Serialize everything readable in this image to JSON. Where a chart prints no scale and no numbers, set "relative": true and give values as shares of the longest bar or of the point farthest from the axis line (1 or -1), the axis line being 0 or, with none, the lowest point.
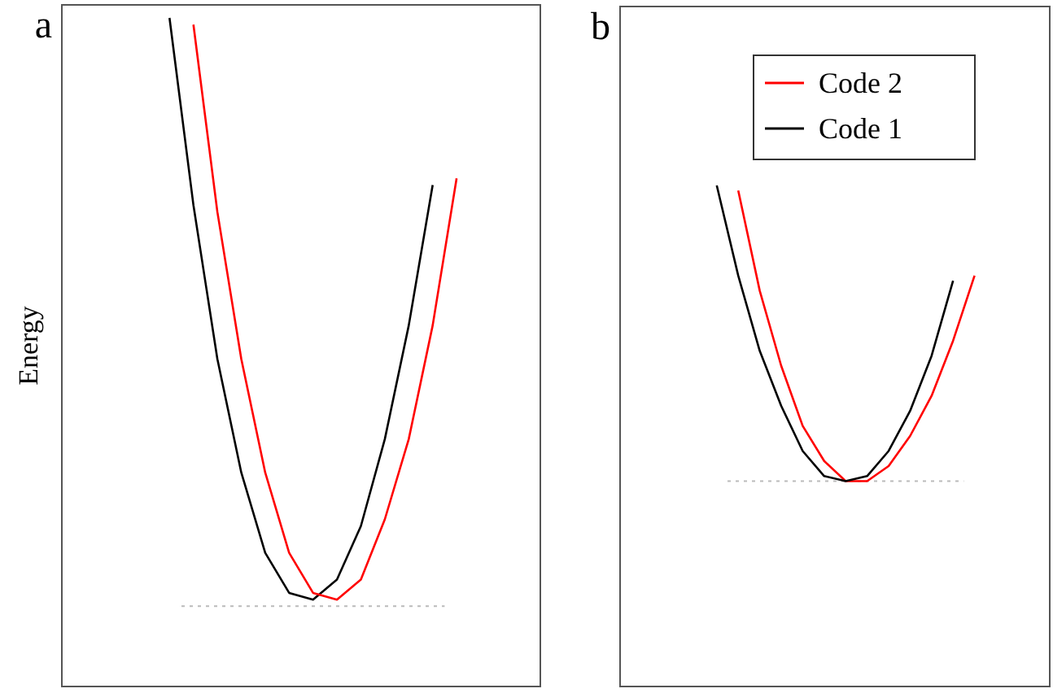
{
  "chart_data": [
    {
      "type": "line",
      "title": "a",
      "ylabel": "Energy",
      "relative": true,
      "legend": false,
      "line_style": "solid",
      "marker": "none",
      "categories": [
        null,
        null,
        null,
        null,
        null,
        null,
        null,
        null,
        null,
        null,
        null,
        null,
        null,
        null,
        null,
        null,
        null,
        null,
        null,
        null
      ],
      "series": [
        {
          "color": "#000000",
          "values": [
            null,
            null,
            null,
            null,
            1,
            0.72,
            0.49,
            0.32,
            0.2,
            0.14,
            0.13,
            0.16,
            0.24,
            0.37,
            0.54,
            0.75,
            null,
            null,
            null,
            null
          ]
        },
        {
          "color": "#ff0000",
          "values": [
            null,
            null,
            null,
            null,
            null,
            0.99,
            0.71,
            0.49,
            0.32,
            0.2,
            0.14,
            0.13,
            0.16,
            0.25,
            0.37,
            0.54,
            0.76,
            null,
            null,
            null
          ]
        }
      ],
      "ref_lines": [
        {
          "axis": "y",
          "value": 0.12,
          "color": "#bbbbbb",
          "line_style": "dotted"
        }
      ]
    },
    {
      "type": "line",
      "title": "b",
      "relative": true,
      "legend": "top",
      "line_style": "solid",
      "marker": "none",
      "categories": [
        null,
        null,
        null,
        null,
        null,
        null,
        null,
        null,
        null,
        null,
        null,
        null,
        null,
        null,
        null,
        null,
        null,
        null,
        null,
        null
      ],
      "series": [
        {
          "name": "Code 2",
          "color": "#ff0000",
          "values": [
            null,
            null,
            null,
            null,
            null,
            0.99,
            0.79,
            0.64,
            0.52,
            0.45,
            0.41,
            0.41,
            0.44,
            0.5,
            0.58,
            0.69,
            0.82,
            null,
            null,
            null
          ]
        },
        {
          "name": "Code 1",
          "color": "#000000",
          "values": [
            null,
            null,
            null,
            null,
            1,
            0.82,
            0.67,
            0.56,
            0.47,
            0.42,
            0.41,
            0.42,
            0.47,
            0.55,
            0.66,
            0.81,
            null,
            null,
            null,
            null
          ]
        }
      ],
      "ref_lines": [
        {
          "axis": "y",
          "value": 0.41,
          "color": "#bbbbbb",
          "line_style": "dotted"
        }
      ]
    }
  ]
}
